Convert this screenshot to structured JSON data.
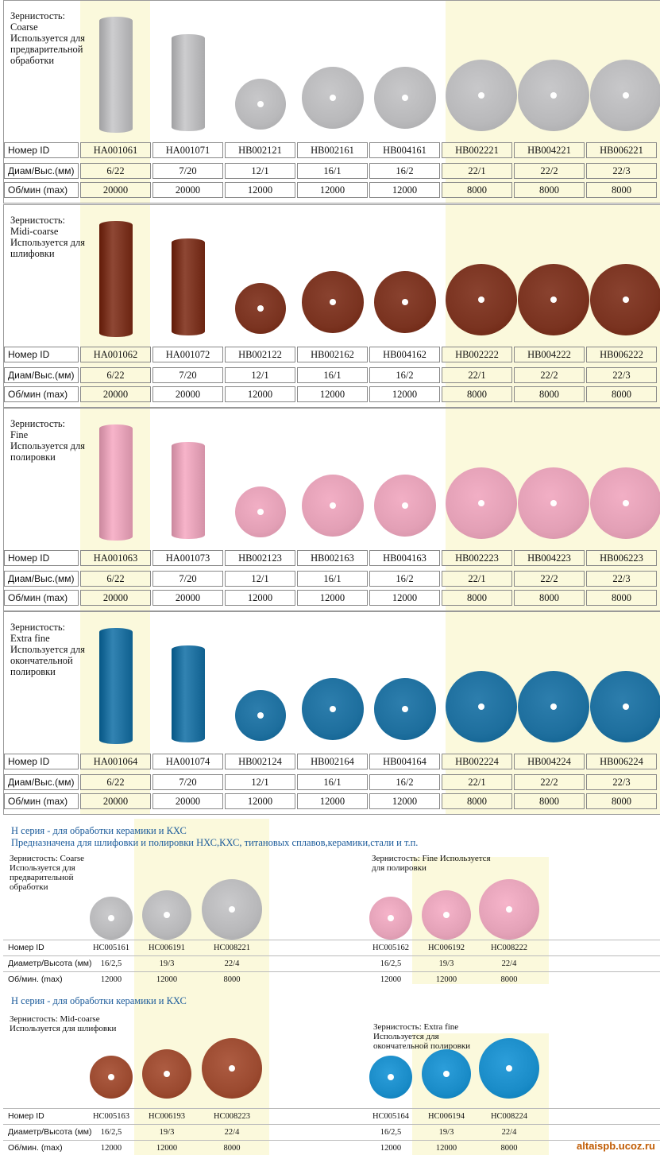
{
  "labels": {
    "id": "Номер ID",
    "dim": "Диам/Выс.(мм)",
    "rpm": "Об/мин (max)"
  },
  "dims": [
    "6/22",
    "7/20",
    "12/1",
    "16/1",
    "16/2",
    "22/1",
    "22/2",
    "22/3"
  ],
  "rpms": [
    "20000",
    "20000",
    "12000",
    "12000",
    "12000",
    "8000",
    "8000",
    "8000"
  ],
  "blocks": [
    {
      "grit_lines": [
        "Зернистость:",
        "Coarse",
        "Используется для предварительной обработки"
      ],
      "color": "#b9b9bb",
      "ids": [
        "HA001061",
        "HA001071",
        "HB002121",
        "HB002161",
        "HB004161",
        "HB002221",
        "HB004221",
        "HB006221"
      ]
    },
    {
      "grit_lines": [
        "Зернистость:",
        "Midi-coarse",
        "Используется для шлифовки"
      ],
      "color": "#7a3320",
      "ids": [
        "HA001062",
        "HA001072",
        "HB002122",
        "HB002162",
        "HB004162",
        "HB002222",
        "HB004222",
        "HB006222"
      ]
    },
    {
      "grit_lines": [
        "Зернистость:",
        "Fine",
        "Используется для полировки"
      ],
      "color": "#e3a0b6",
      "ids": [
        "HA001063",
        "HA001073",
        "HB002123",
        "HB002163",
        "HB004163",
        "HB002223",
        "HB004223",
        "HB006223"
      ]
    },
    {
      "grit_lines": [
        "Зернистость:",
        "Extra fine",
        "Используется для окончательной полировки"
      ],
      "color": "#1e6f9e",
      "ids": [
        "HA001064",
        "HA001074",
        "HB002124",
        "HB002164",
        "HB004164",
        "HB002224",
        "HB004224",
        "HB006224"
      ]
    }
  ],
  "h_series": {
    "title1": "Н серия - для обработки керамики и КХС",
    "title2": "Предназначена для шлифовки и полировки НХС,КХС, титановых сплавов,керамики,стали и т.п.",
    "title3": "Н серия - для обработки керамики и КХС",
    "row_labels": {
      "id": "Номер ID",
      "dim": "Диаметр/Высота (мм)",
      "rpm": "Об/мин. (max)"
    },
    "dims": [
      "16/2,5",
      "19/3",
      "22/4"
    ],
    "rpms": [
      "12000",
      "12000",
      "8000"
    ],
    "groups": [
      {
        "grit": "Зернистость: Coarse Используется для предварительной обработки",
        "color": "#b8b8ba",
        "ids": [
          "HC005161",
          "HC006191",
          "HC008221"
        ]
      },
      {
        "grit": "Зернистость: Fine Используется для полировки",
        "color": "#e4a2b8",
        "ids": [
          "HC005162",
          "HC006192",
          "HC008222"
        ]
      },
      {
        "grit": "Зернистость: Mid-coarse Используется для шлифовки",
        "color": "#9b4a30",
        "ids": [
          "HC005163",
          "HC006193",
          "HC008223"
        ]
      },
      {
        "grit": "Зернистость: Extra fine Используется для окончательной полировки",
        "color": "#1a8cc8",
        "ids": [
          "HC005164",
          "HC006194",
          "HC008224"
        ]
      }
    ]
  },
  "watermark": "altaispb.ucoz.ru"
}
